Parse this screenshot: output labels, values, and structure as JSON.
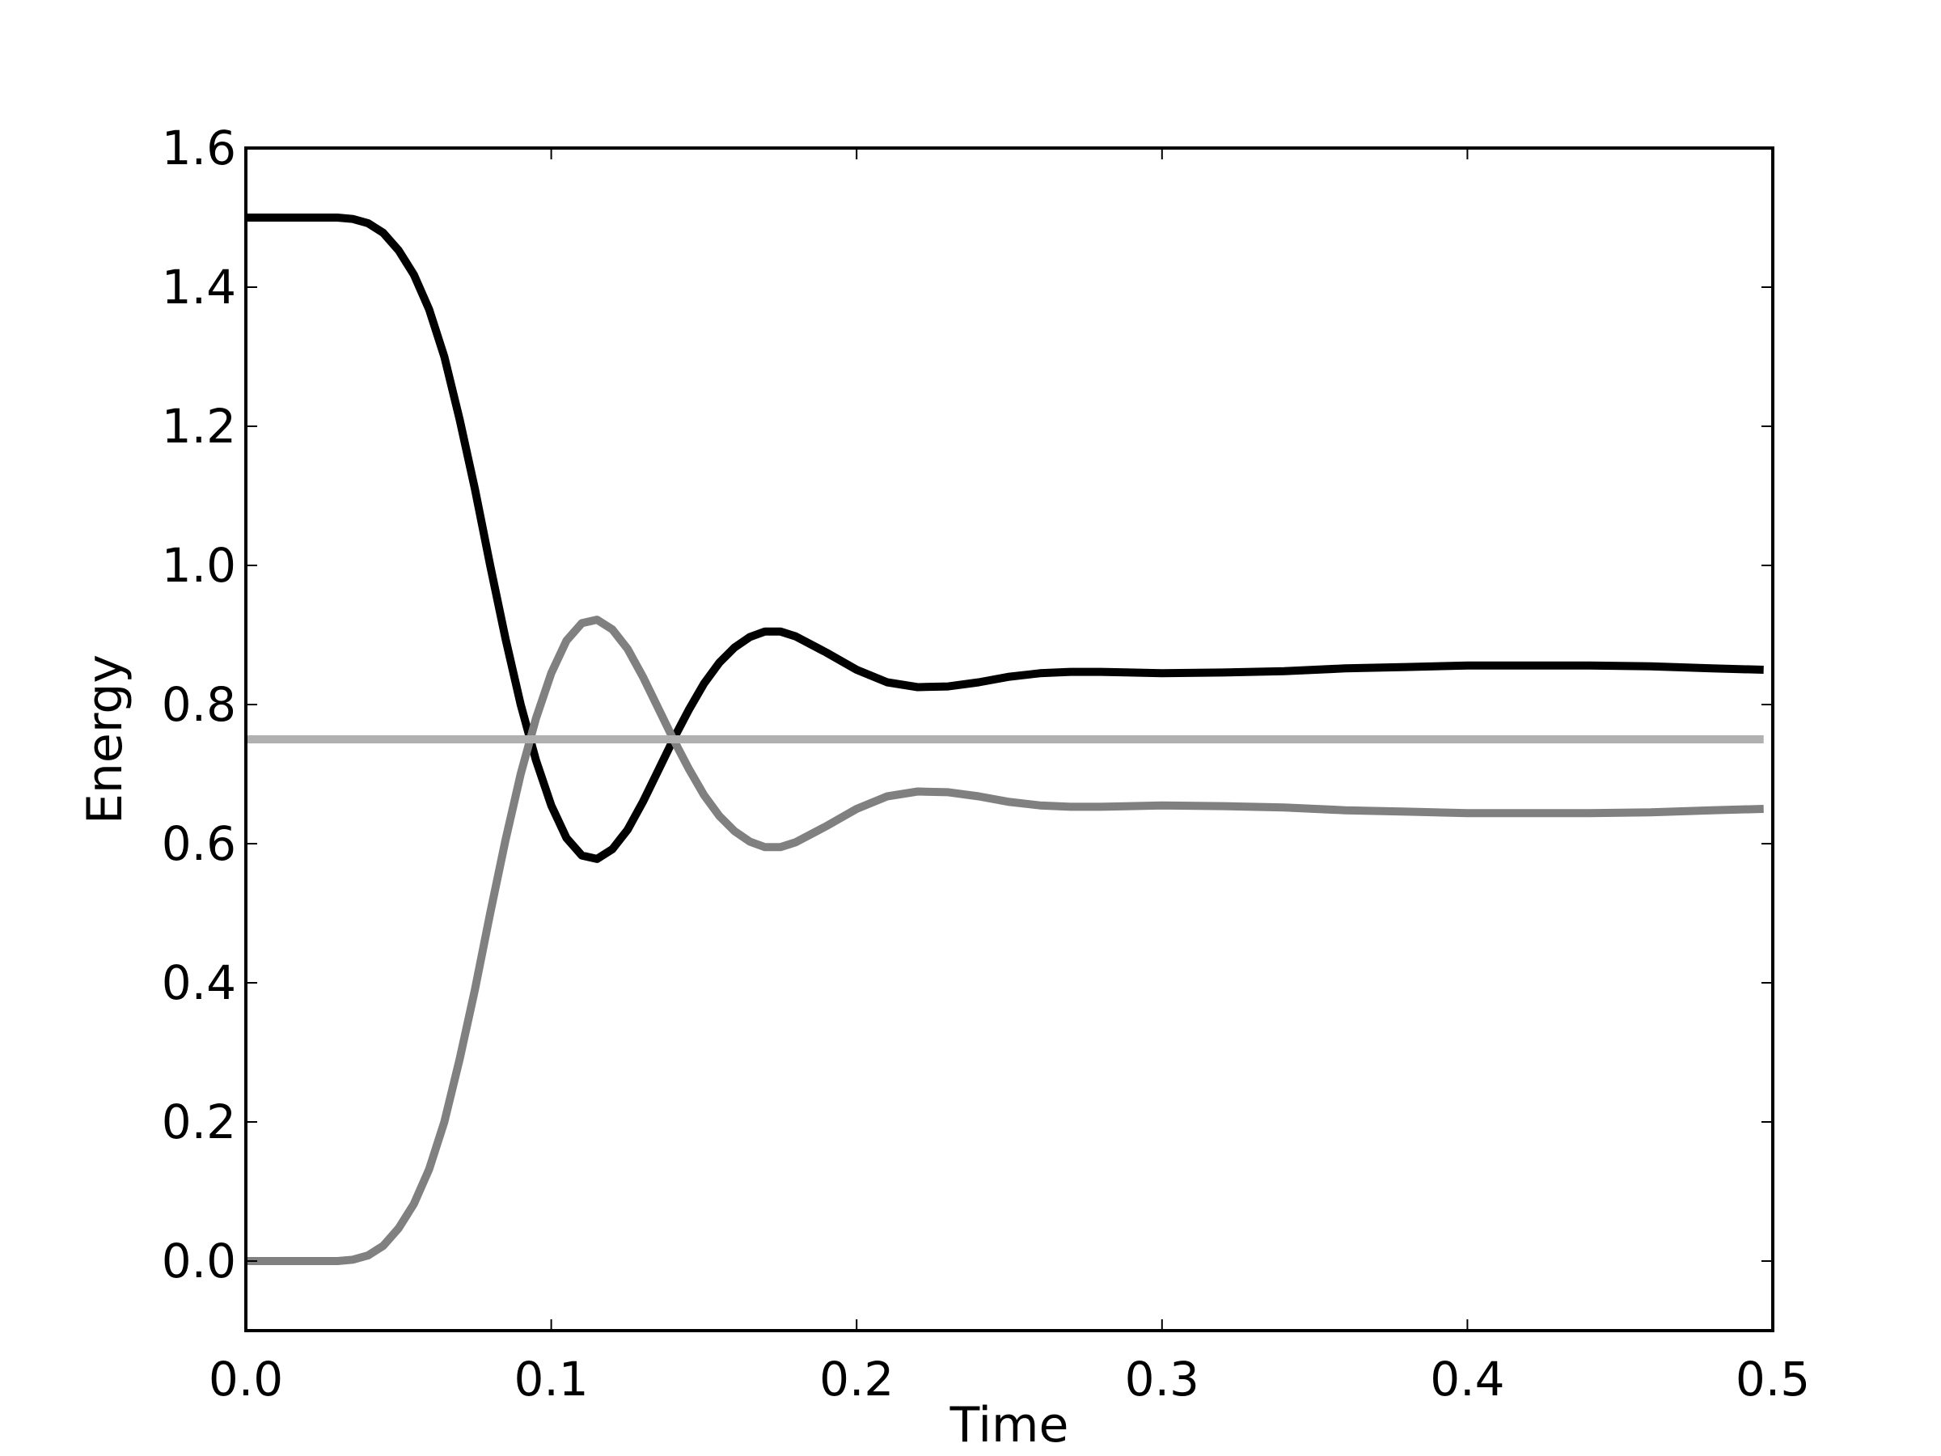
{
  "chart_data": {
    "type": "line",
    "title": "",
    "xlabel": "Time",
    "ylabel": "Energy",
    "xlim": [
      0.0,
      0.5
    ],
    "ylim": [
      -0.1,
      1.6
    ],
    "xticks": [
      0.0,
      0.1,
      0.2,
      0.3,
      0.4,
      0.5
    ],
    "xtick_labels": [
      "0.0",
      "0.1",
      "0.2",
      "0.3",
      "0.4",
      "0.5"
    ],
    "yticks": [
      0.0,
      0.2,
      0.4,
      0.6,
      0.8,
      1.0,
      1.2,
      1.4,
      1.6
    ],
    "ytick_labels": [
      "0.0",
      "0.2",
      "0.4",
      "0.6",
      "0.8",
      "1.0",
      "1.2",
      "1.4",
      "1.6"
    ],
    "grid": false,
    "legend": "none",
    "series": [
      {
        "color": "#000000",
        "x": [
          0.0,
          0.03,
          0.035,
          0.04,
          0.045,
          0.05,
          0.055,
          0.06,
          0.065,
          0.07,
          0.075,
          0.08,
          0.085,
          0.09,
          0.095,
          0.1,
          0.105,
          0.11,
          0.115,
          0.12,
          0.125,
          0.13,
          0.135,
          0.14,
          0.145,
          0.15,
          0.155,
          0.16,
          0.165,
          0.17,
          0.175,
          0.18,
          0.19,
          0.2,
          0.21,
          0.22,
          0.23,
          0.24,
          0.25,
          0.26,
          0.27,
          0.28,
          0.3,
          0.32,
          0.34,
          0.36,
          0.38,
          0.4,
          0.42,
          0.44,
          0.46,
          0.48,
          0.497
        ],
        "values": [
          1.5,
          1.5,
          1.498,
          1.492,
          1.478,
          1.453,
          1.418,
          1.368,
          1.3,
          1.21,
          1.11,
          1.0,
          0.895,
          0.8,
          0.72,
          0.655,
          0.608,
          0.583,
          0.578,
          0.592,
          0.62,
          0.66,
          0.705,
          0.75,
          0.792,
          0.83,
          0.86,
          0.882,
          0.897,
          0.905,
          0.905,
          0.898,
          0.875,
          0.85,
          0.832,
          0.825,
          0.826,
          0.832,
          0.84,
          0.845,
          0.847,
          0.847,
          0.845,
          0.846,
          0.848,
          0.852,
          0.854,
          0.856,
          0.856,
          0.856,
          0.855,
          0.852,
          0.85
        ]
      },
      {
        "color": "#808080",
        "x": [
          0.0,
          0.03,
          0.035,
          0.04,
          0.045,
          0.05,
          0.055,
          0.06,
          0.065,
          0.07,
          0.075,
          0.08,
          0.085,
          0.09,
          0.095,
          0.1,
          0.105,
          0.11,
          0.115,
          0.12,
          0.125,
          0.13,
          0.135,
          0.14,
          0.145,
          0.15,
          0.155,
          0.16,
          0.165,
          0.17,
          0.175,
          0.18,
          0.19,
          0.2,
          0.21,
          0.22,
          0.23,
          0.24,
          0.25,
          0.26,
          0.27,
          0.28,
          0.3,
          0.32,
          0.34,
          0.36,
          0.38,
          0.4,
          0.42,
          0.44,
          0.46,
          0.48,
          0.497
        ],
        "values": [
          0.0,
          0.0,
          0.002,
          0.008,
          0.022,
          0.047,
          0.082,
          0.132,
          0.2,
          0.29,
          0.39,
          0.5,
          0.605,
          0.7,
          0.78,
          0.845,
          0.892,
          0.917,
          0.922,
          0.908,
          0.88,
          0.84,
          0.795,
          0.75,
          0.708,
          0.67,
          0.64,
          0.618,
          0.603,
          0.595,
          0.595,
          0.602,
          0.625,
          0.65,
          0.668,
          0.675,
          0.674,
          0.668,
          0.66,
          0.655,
          0.653,
          0.653,
          0.655,
          0.654,
          0.652,
          0.648,
          0.646,
          0.644,
          0.644,
          0.644,
          0.645,
          0.648,
          0.65
        ]
      },
      {
        "color": "#b0b0b0",
        "x": [
          0.0,
          0.497
        ],
        "values": [
          0.75,
          0.75
        ]
      }
    ]
  }
}
